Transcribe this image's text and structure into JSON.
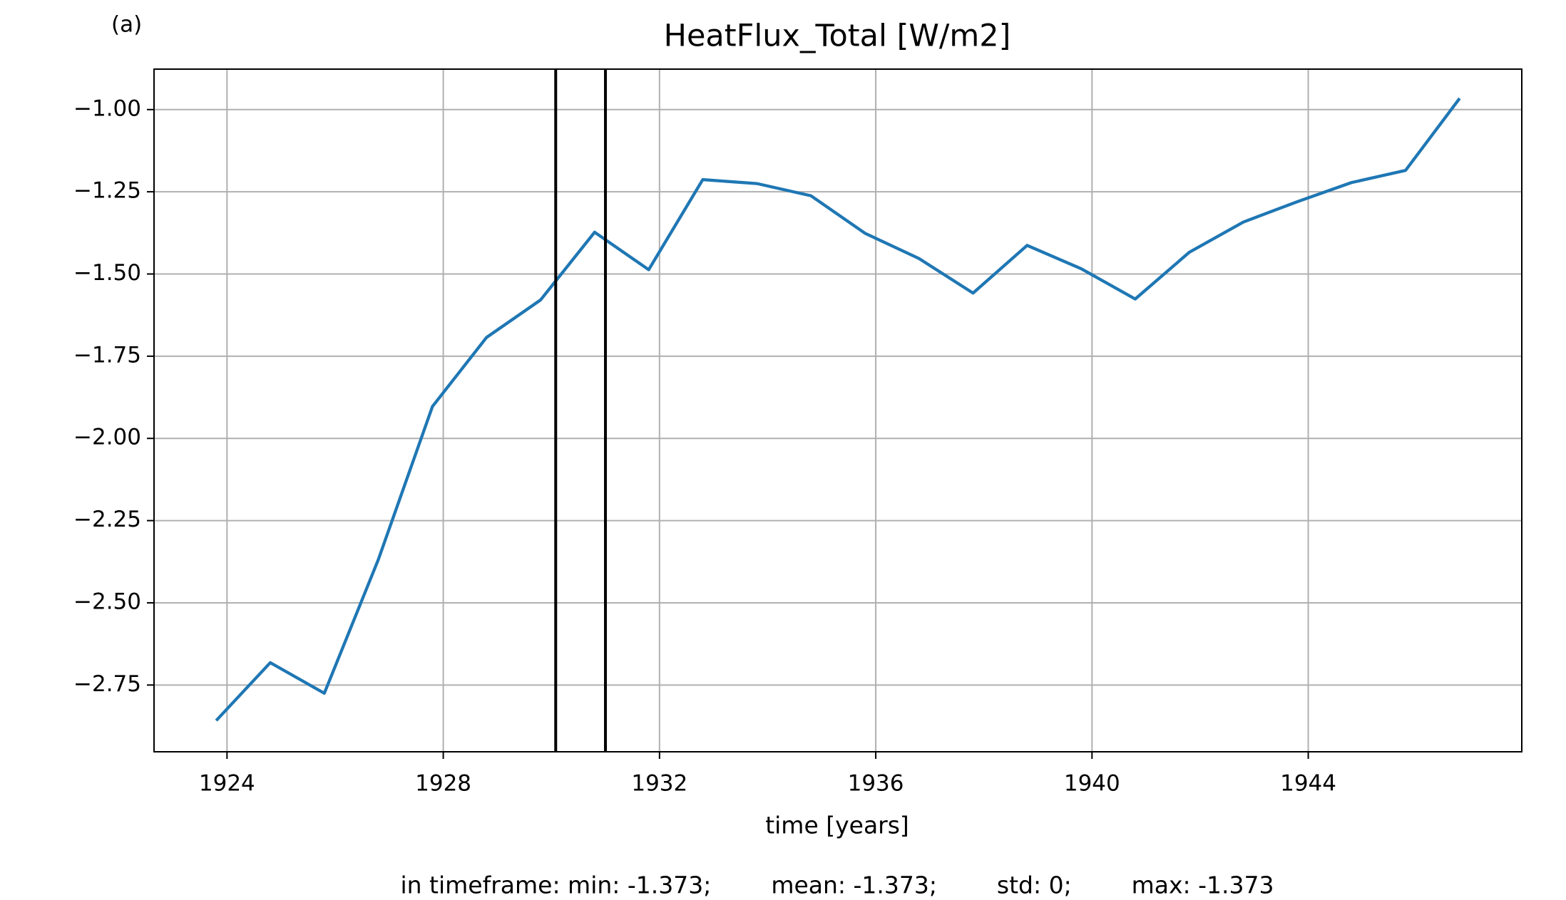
{
  "chart_data": {
    "type": "line",
    "panel_label": "(a)",
    "title": "HeatFlux_Total [W/m2]",
    "x_label": "time [years]",
    "footer": "in timeframe: min: -1.373;        mean: -1.373;        std: 0;        max: -1.373",
    "x": [
      1923.8,
      1924.8,
      1925.8,
      1926.8,
      1927.8,
      1928.8,
      1929.8,
      1930.8,
      1931.8,
      1932.8,
      1933.8,
      1934.8,
      1935.8,
      1936.8,
      1937.8,
      1938.8,
      1939.8,
      1940.8,
      1941.8,
      1942.8,
      1943.8,
      1944.8,
      1945.8,
      1946.8
    ],
    "series": [
      {
        "name": "HeatFlux_Total",
        "color": "#1f77b4",
        "values": [
          -2.858,
          -2.682,
          -2.775,
          -2.368,
          -1.903,
          -1.693,
          -1.579,
          -1.373,
          -1.487,
          -1.213,
          -1.225,
          -1.262,
          -1.376,
          -1.453,
          -1.558,
          -1.413,
          -1.484,
          -1.576,
          -1.434,
          -1.342,
          -1.28,
          -1.222,
          -1.185,
          -0.966
        ]
      }
    ],
    "vlines": [
      1930.08,
      1931.0
    ],
    "vline_color": "#000000",
    "xlim": [
      1922.65,
      1947.95
    ],
    "ylim": [
      -2.953,
      -0.877
    ],
    "xticks": [
      1924,
      1928,
      1932,
      1936,
      1940,
      1944
    ],
    "yticks": [
      {
        "value": -1.0,
        "label": "−1.00"
      },
      {
        "value": -1.25,
        "label": "−1.25"
      },
      {
        "value": -1.5,
        "label": "−1.50"
      },
      {
        "value": -1.75,
        "label": "−1.75"
      },
      {
        "value": -2.0,
        "label": "−2.00"
      },
      {
        "value": -2.25,
        "label": "−2.25"
      },
      {
        "value": -2.5,
        "label": "−2.50"
      },
      {
        "value": -2.75,
        "label": "−2.75"
      }
    ],
    "grid": true
  }
}
